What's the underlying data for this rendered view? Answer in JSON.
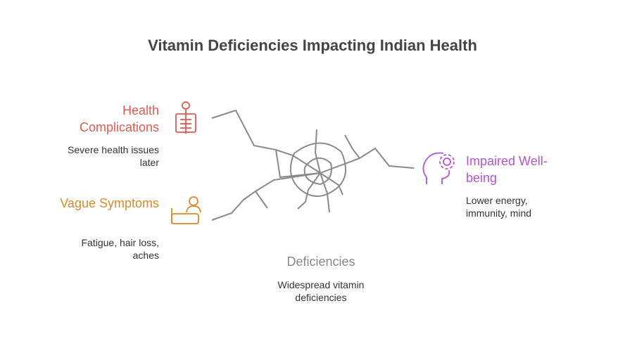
{
  "title": "Vitamin Deficiencies Impacting Indian Health",
  "nodes": [
    {
      "label": "Health Complications",
      "description": "Severe health issues later"
    },
    {
      "label": "Vague Symptoms",
      "description": "Fatigue, hair loss, aches"
    },
    {
      "label": "Impaired Well-being",
      "description": "Lower energy, immunity, mind"
    },
    {
      "label": "Deficiencies",
      "description": "Widespread vitamin deficiencies"
    }
  ]
}
